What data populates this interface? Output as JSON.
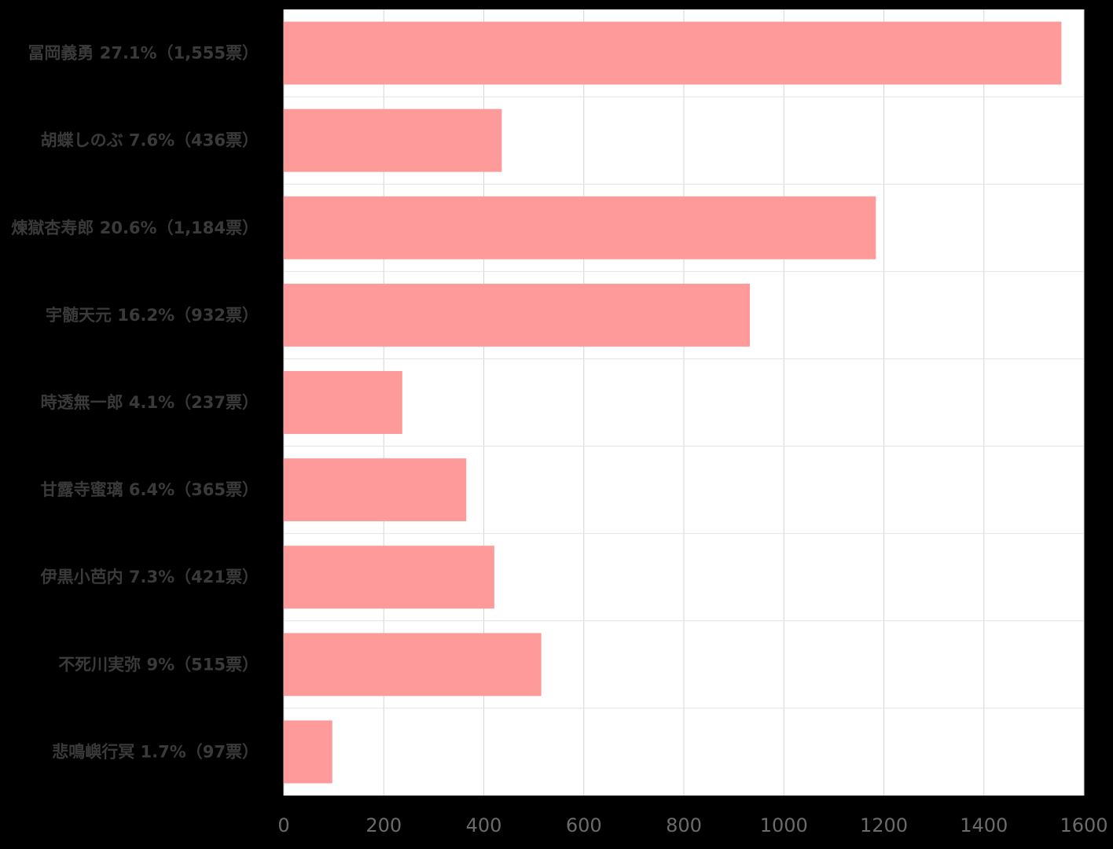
{
  "chart_data": {
    "type": "bar",
    "orientation": "horizontal",
    "categories": [
      "冨岡義勇 27.1%（1,555票）",
      "胡蝶しのぶ 7.6%（436票）",
      "煉獄杏寿郎 20.6%（1,184票）",
      "宇髄天元 16.2%（932票）",
      "時透無一郎 4.1%（237票）",
      "甘露寺蜜璃 6.4%（365票）",
      "伊黒小芭内 7.3%（421票）",
      "不死川実弥 9%（515票）",
      "悲鳴嶼行冥 1.7%（97票）"
    ],
    "values": [
      1555,
      436,
      1184,
      932,
      237,
      365,
      421,
      515,
      97
    ],
    "xlim": [
      0,
      1600
    ],
    "xticks": [
      "0",
      "200",
      "400",
      "600",
      "800",
      "1000",
      "1200",
      "1400",
      "1600"
    ],
    "grid": true,
    "bar_color": "#ff9a9a",
    "background": "#ffffff",
    "page_background": "#000000"
  }
}
